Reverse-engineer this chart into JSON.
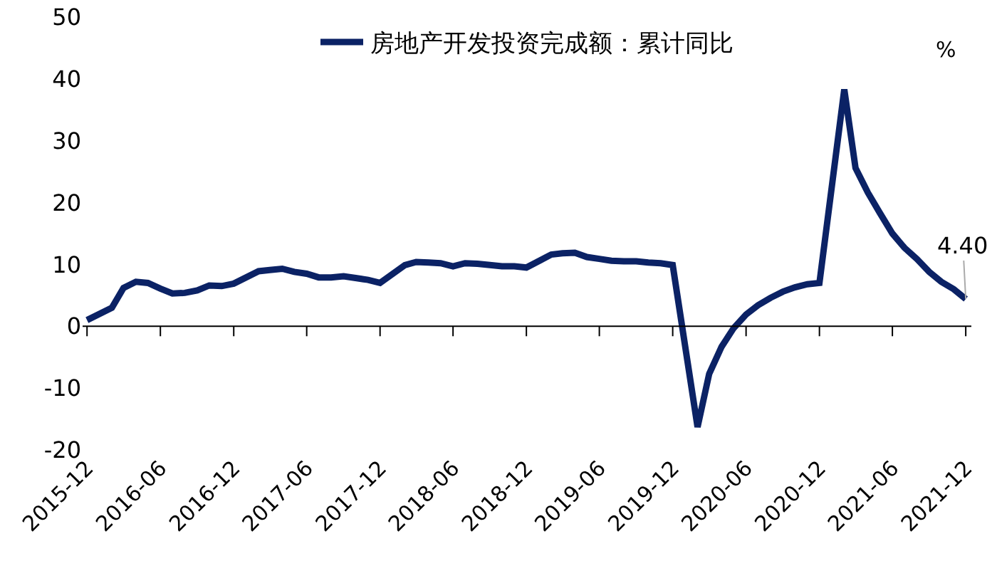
{
  "chart_data": {
    "type": "line",
    "legend": "top",
    "x": [
      "2015-12",
      "2016-02",
      "2016-03",
      "2016-04",
      "2016-05",
      "2016-06",
      "2016-07",
      "2016-08",
      "2016-09",
      "2016-10",
      "2016-11",
      "2016-12",
      "2017-02",
      "2017-03",
      "2017-04",
      "2017-05",
      "2017-06",
      "2017-07",
      "2017-08",
      "2017-09",
      "2017-10",
      "2017-11",
      "2017-12",
      "2018-02",
      "2018-03",
      "2018-04",
      "2018-05",
      "2018-06",
      "2018-07",
      "2018-08",
      "2018-09",
      "2018-10",
      "2018-11",
      "2018-12",
      "2019-02",
      "2019-03",
      "2019-04",
      "2019-05",
      "2019-06",
      "2019-07",
      "2019-08",
      "2019-09",
      "2019-10",
      "2019-11",
      "2019-12",
      "2020-02",
      "2020-03",
      "2020-04",
      "2020-05",
      "2020-06",
      "2020-07",
      "2020-08",
      "2020-09",
      "2020-10",
      "2020-11",
      "2020-12",
      "2021-02",
      "2021-03",
      "2021-04",
      "2021-05",
      "2021-06",
      "2021-07",
      "2021-08",
      "2021-09",
      "2021-10",
      "2021-11",
      "2021-12"
    ],
    "series": [
      {
        "name": "房地产开发投资完成额：累计同比",
        "color": "#0b2265",
        "values": [
          1.0,
          3.0,
          6.2,
          7.2,
          7.0,
          6.1,
          5.3,
          5.4,
          5.8,
          6.6,
          6.5,
          6.9,
          8.9,
          9.1,
          9.3,
          8.8,
          8.5,
          7.9,
          7.9,
          8.1,
          7.8,
          7.5,
          7.0,
          9.9,
          10.4,
          10.3,
          10.2,
          9.7,
          10.2,
          10.1,
          9.9,
          9.7,
          9.7,
          9.5,
          11.6,
          11.8,
          11.9,
          11.2,
          10.9,
          10.6,
          10.5,
          10.5,
          10.3,
          10.2,
          9.9,
          -16.3,
          -7.7,
          -3.3,
          -0.3,
          1.9,
          3.4,
          4.6,
          5.6,
          6.3,
          6.8,
          7.0,
          38.3,
          25.6,
          21.6,
          18.3,
          15.0,
          12.7,
          10.9,
          8.8,
          7.2,
          6.0,
          4.4
        ]
      }
    ],
    "xlim": [
      "2015-11-20",
      "2021-12-15"
    ],
    "xticks": [
      "2015-12",
      "2016-06",
      "2016-12",
      "2017-06",
      "2017-12",
      "2018-06",
      "2018-12",
      "2019-06",
      "2019-12",
      "2020-06",
      "2020-12",
      "2021-06",
      "2021-12"
    ],
    "ylim": [
      -20,
      50
    ],
    "yticks": [
      -20,
      -10,
      0,
      10,
      20,
      30,
      40,
      50
    ],
    "annotations": [
      {
        "text": "4.40",
        "x": "2021-12",
        "y": 4.4
      },
      "%"
    ]
  }
}
